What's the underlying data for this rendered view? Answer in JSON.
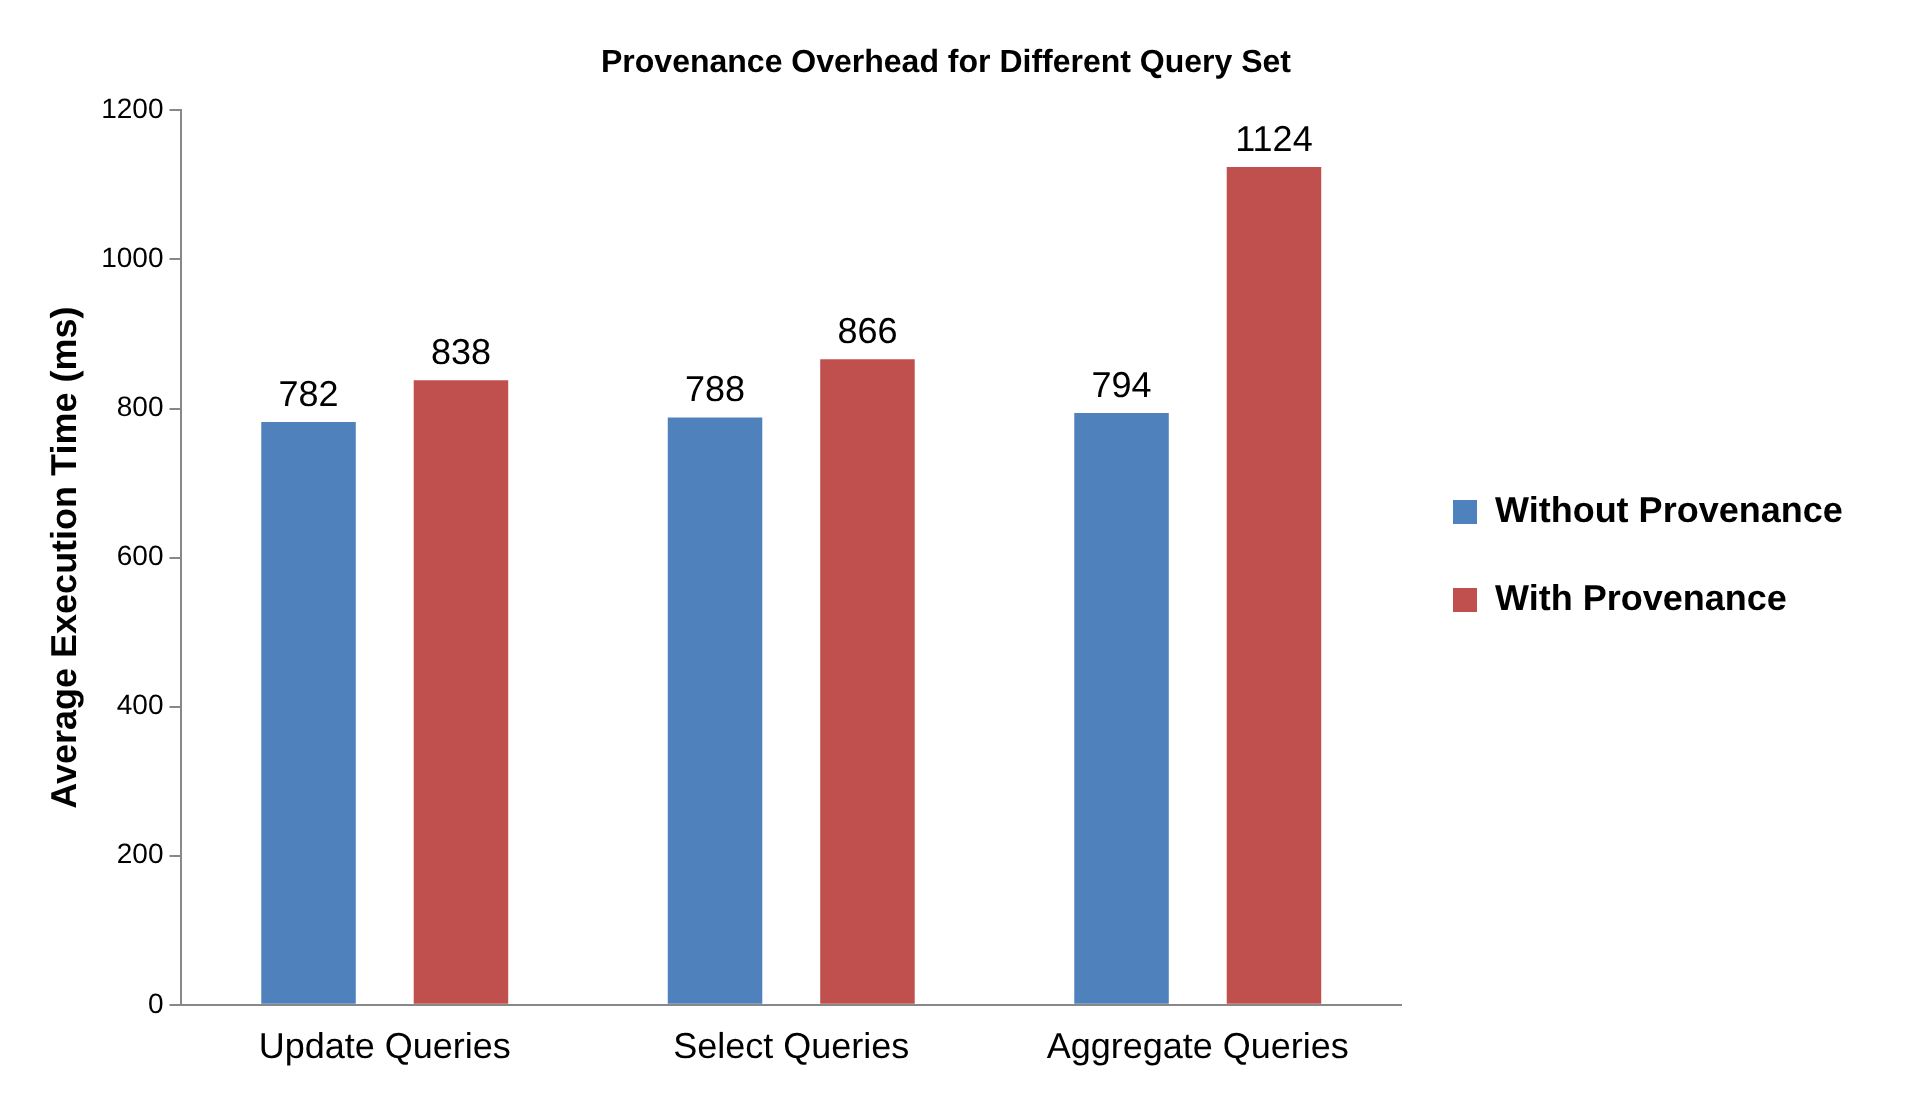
{
  "chart_data": {
    "type": "bar",
    "title": "Provenance Overhead for Different Query Set",
    "ylabel": "Average Execution Time (ms)",
    "categories": [
      "Update Queries",
      "Select Queries",
      "Aggregate Queries"
    ],
    "series": [
      {
        "name": "Without Provenance",
        "color": "#4f81bd",
        "values": [
          782,
          788,
          794
        ]
      },
      {
        "name": "With Provenance",
        "color": "#c0504d",
        "values": [
          838,
          866,
          1124
        ]
      }
    ],
    "ylim": [
      0,
      1200
    ],
    "yticks": [
      0,
      200,
      400,
      600,
      800,
      1000,
      1200
    ],
    "grid": false,
    "legend": "right",
    "data_labels": true
  }
}
